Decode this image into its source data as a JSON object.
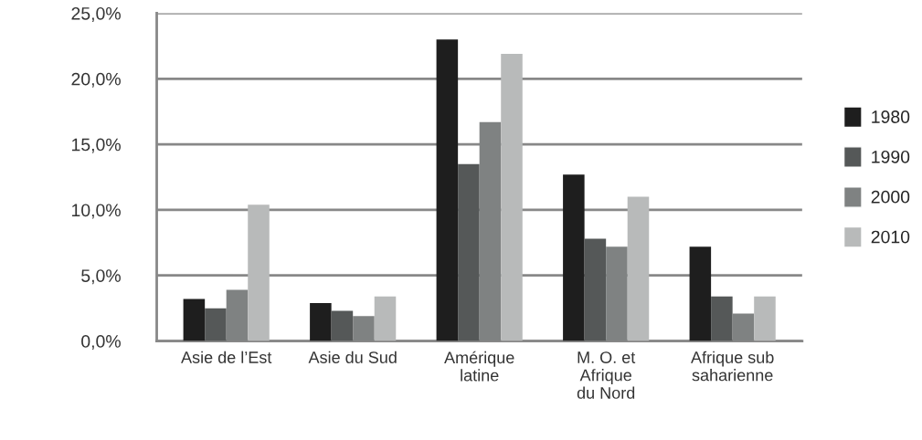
{
  "chart_data": {
    "type": "bar",
    "categories": [
      "Asie de l’Est",
      "Asie du Sud",
      "Amérique\nlatine",
      "M. O. et\nAfrique\ndu Nord",
      "Afrique sub\nsaharienne"
    ],
    "series": [
      {
        "name": "1980",
        "color": "#1e1e1e",
        "values": [
          3.2,
          2.9,
          23.0,
          12.7,
          7.2
        ]
      },
      {
        "name": "1990",
        "color": "#555858",
        "values": [
          2.5,
          2.3,
          13.5,
          7.8,
          3.4
        ]
      },
      {
        "name": "2000",
        "color": "#7f8282",
        "values": [
          3.9,
          1.9,
          16.7,
          7.2,
          2.1
        ]
      },
      {
        "name": "2010",
        "color": "#b8baba",
        "values": [
          10.4,
          3.4,
          21.9,
          11.0,
          3.4
        ]
      }
    ],
    "ylim": [
      0,
      25
    ],
    "yticks": [
      {
        "value": 0,
        "label": "0,0%"
      },
      {
        "value": 5,
        "label": "5,0%"
      },
      {
        "value": 10,
        "label": "10,0%"
      },
      {
        "value": 15,
        "label": "15,0%"
      },
      {
        "value": 20,
        "label": "20,0%"
      },
      {
        "value": 25,
        "label": "25,0%"
      }
    ],
    "grid": "y",
    "legend": "right"
  }
}
